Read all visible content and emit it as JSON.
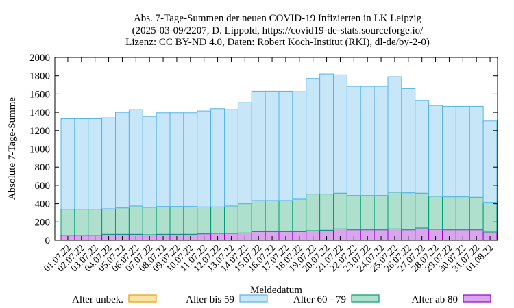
{
  "chart_data": {
    "type": "bar",
    "stacked": true,
    "title_lines": [
      "Abs. 7-Tage-Summen der neuen COVID-19 Infizierten in LK Leipzig",
      "(2025-03-09/2207, D. Lippold, https://covid19-de-stats.sourceforge.io/",
      "Lizenz: CC BY-ND 4.0, Daten: Robert Koch-Institut (RKI), dl-de/by-2-0)"
    ],
    "xlabel": "Meldedatum",
    "ylabel": "Absolute 7-Tage-Summe",
    "ylim": [
      0,
      2000
    ],
    "yticks": [
      0,
      200,
      400,
      600,
      800,
      1000,
      1200,
      1400,
      1600,
      1800,
      2000
    ],
    "categories": [
      "01.07.22",
      "02.07.22",
      "03.07.22",
      "04.07.22",
      "05.07.22",
      "06.07.22",
      "07.07.22",
      "08.07.22",
      "09.07.22",
      "10.07.22",
      "11.07.22",
      "12.07.22",
      "13.07.22",
      "14.07.22",
      "15.07.22",
      "16.07.22",
      "17.07.22",
      "18.07.22",
      "19.07.22",
      "20.07.22",
      "21.07.22",
      "22.07.22",
      "23.07.22",
      "24.07.22",
      "25.07.22",
      "26.07.22",
      "27.07.22",
      "28.07.22",
      "29.07.22",
      "30.07.22",
      "31.07.22",
      "01.08.22"
    ],
    "series": [
      {
        "name": "Alter ab 80",
        "color": "#d9a6ee",
        "edge": "#9400d3",
        "values": [
          55,
          55,
          55,
          65,
          65,
          65,
          60,
          65,
          65,
          65,
          70,
          75,
          75,
          80,
          95,
          95,
          95,
          95,
          105,
          110,
          125,
          115,
          115,
          115,
          125,
          115,
          135,
          120,
          115,
          115,
          115,
          90
        ]
      },
      {
        "name": "Alter 60 - 79",
        "color": "#aee0cd",
        "edge": "#009e73",
        "values": [
          285,
          285,
          285,
          280,
          290,
          310,
          300,
          305,
          305,
          305,
          295,
          290,
          300,
          320,
          340,
          340,
          340,
          355,
          400,
          395,
          390,
          375,
          375,
          375,
          400,
          405,
          380,
          360,
          360,
          360,
          355,
          325
        ]
      },
      {
        "name": "Alter bis 59",
        "color": "#c7e6f8",
        "edge": "#56b4e9",
        "values": [
          990,
          990,
          990,
          995,
          1045,
          1055,
          995,
          1025,
          1025,
          1025,
          1050,
          1075,
          1055,
          1105,
          1195,
          1195,
          1195,
          1175,
          1265,
          1315,
          1295,
          1195,
          1195,
          1195,
          1265,
          1140,
          1015,
          995,
          990,
          990,
          995,
          890
        ]
      },
      {
        "name": "Alter unbek.",
        "color": "#fbe3a6",
        "edge": "#e69f00",
        "values": [
          0,
          0,
          0,
          0,
          0,
          0,
          0,
          0,
          0,
          0,
          0,
          0,
          0,
          0,
          0,
          0,
          0,
          0,
          0,
          0,
          0,
          0,
          0,
          0,
          0,
          0,
          0,
          0,
          0,
          0,
          0,
          0
        ]
      }
    ],
    "legend": [
      {
        "label": "Alter unbek.",
        "color": "#fbe3a6",
        "edge": "#e69f00"
      },
      {
        "label": "Alter bis 59",
        "color": "#c7e6f8",
        "edge": "#56b4e9"
      },
      {
        "label": "Alter 60 - 79",
        "color": "#aee0cd",
        "edge": "#009e73"
      },
      {
        "label": "Alter ab 80",
        "color": "#d9a6ee",
        "edge": "#9400d3"
      }
    ],
    "legend_position": "bottom"
  }
}
